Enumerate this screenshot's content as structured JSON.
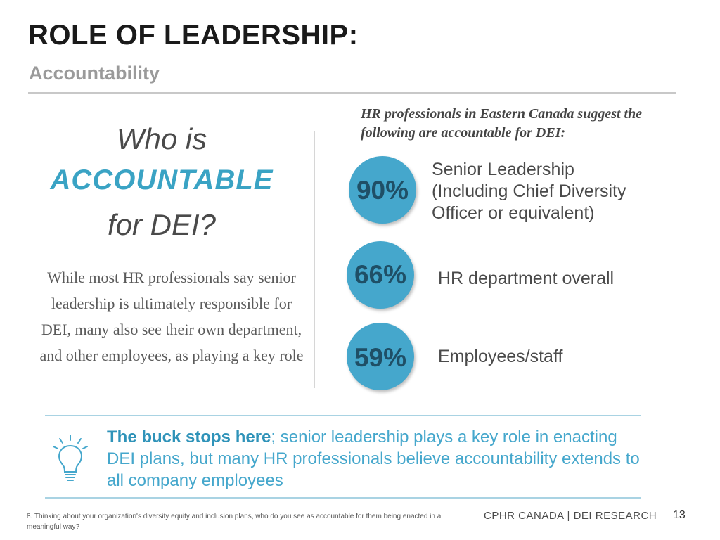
{
  "header": {
    "title": "ROLE OF LEADERSHIP:",
    "subtitle": "Accountability"
  },
  "question": {
    "line1": "Who is",
    "line2": "ACCOUNTABLE",
    "line3": "for DEI?"
  },
  "left_body": "While most HR professionals say senior leadership is ultimately responsible for DEI, many also see their own department, and other employees, as playing a key role",
  "chart_intro": "HR professionals in Eastern Canada suggest the following are accountable for DEI:",
  "stats": [
    {
      "value": "90%",
      "label_lines": [
        " Senior Leadership",
        "(Including Chief Diversity",
        "Officer or equivalent)"
      ]
    },
    {
      "value": "66%",
      "label_lines": [
        "HR department overall"
      ]
    },
    {
      "value": "59%",
      "label_lines": [
        "Employees/staff"
      ]
    }
  ],
  "callout": {
    "icon": "lightbulb-icon",
    "bold": "The buck stops here",
    "rest": "; senior leadership plays a key role in enacting DEI plans, but many HR professionals believe accountability extends to all company employees"
  },
  "footer": {
    "footnote": "8. Thinking about your organization's diversity equity and inclusion plans, who do you see as accountable for them being enacted in a meaningful way?",
    "brand": "CPHR CANADA | DEI RESEARCH",
    "page_number": "13"
  },
  "colors": {
    "accent": "#45a7cc",
    "accent_dark_text": "#1f4f66",
    "title": "#1a1a1a",
    "subtitle": "#9a9a9a"
  }
}
